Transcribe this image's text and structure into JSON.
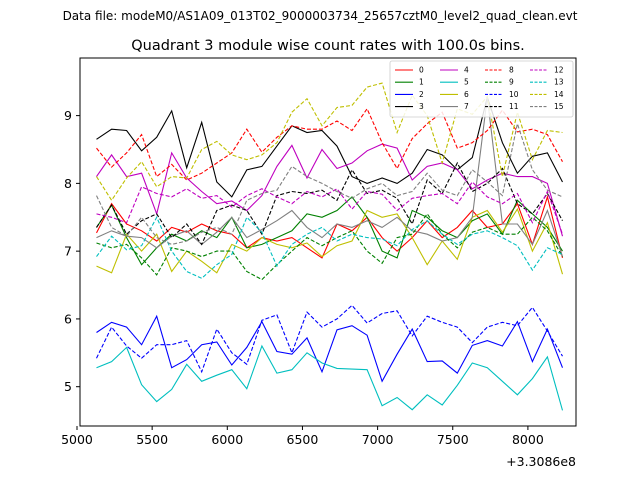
{
  "chart_data": {
    "type": "line",
    "suptitle": "Data file: modeM0/AS1A09_013T02_9000003734_25657cztM0_level2_quad_clean.evt",
    "title": "Quadrant 3 module wise count rates with 100.0s bins.",
    "xlabel": "",
    "ylabel": "",
    "x_offset_label": "+3.3086e8",
    "xlim": [
      5020,
      8320
    ],
    "ylim": [
      4.42,
      9.85
    ],
    "xticks": [
      5000,
      5500,
      6000,
      6500,
      7000,
      7500,
      8000
    ],
    "yticks": [
      5,
      6,
      7,
      8,
      9
    ],
    "x": [
      5130,
      5230,
      5330,
      5430,
      5530,
      5630,
      5730,
      5830,
      5930,
      6030,
      6130,
      6230,
      6330,
      6430,
      6530,
      6630,
      6730,
      6830,
      6930,
      7030,
      7130,
      7230,
      7330,
      7430,
      7530,
      7630,
      7730,
      7830,
      7930,
      8030,
      8130,
      8230
    ],
    "legend_position": "upper right",
    "series": [
      {
        "name": "0",
        "color": "#ff0000",
        "dash": "solid",
        "values": [
          7.27,
          7.7,
          7.4,
          7.3,
          7.15,
          7.35,
          7.28,
          7.4,
          7.3,
          7.25,
          7.05,
          7.2,
          7.15,
          7.2,
          7.05,
          6.9,
          7.4,
          7.3,
          7.5,
          7.2,
          7.0,
          7.2,
          7.45,
          7.2,
          7.35,
          7.6,
          7.35,
          7.4,
          7.7,
          7.1,
          7.8,
          6.9
        ]
      },
      {
        "name": "1",
        "color": "#008000",
        "dash": "solid",
        "values": [
          7.35,
          7.68,
          7.2,
          6.8,
          7.05,
          7.25,
          7.15,
          7.3,
          7.2,
          7.5,
          7.05,
          7.1,
          7.2,
          7.3,
          7.55,
          7.5,
          7.6,
          7.8,
          7.5,
          7.0,
          6.9,
          7.6,
          7.5,
          7.3,
          7.2,
          7.45,
          7.55,
          7.25,
          7.75,
          7.55,
          7.35,
          7.0
        ]
      },
      {
        "name": "2",
        "color": "#0000ff",
        "dash": "solid",
        "values": [
          5.8,
          5.95,
          5.88,
          5.62,
          6.04,
          5.28,
          5.4,
          5.62,
          5.66,
          5.32,
          5.58,
          5.96,
          5.52,
          5.48,
          5.72,
          5.22,
          5.84,
          5.9,
          5.76,
          5.08,
          5.48,
          5.85,
          5.37,
          5.38,
          5.2,
          5.61,
          5.68,
          5.6,
          5.96,
          5.37,
          5.85,
          5.28
        ]
      },
      {
        "name": "3",
        "color": "#000000",
        "dash": "solid",
        "values": [
          8.65,
          8.8,
          8.78,
          8.48,
          8.68,
          9.07,
          8.23,
          8.9,
          8.02,
          7.8,
          8.2,
          8.25,
          8.55,
          8.85,
          8.75,
          8.78,
          8.55,
          8.1,
          8.0,
          8.08,
          8.0,
          8.15,
          8.5,
          8.42,
          8.2,
          8.38,
          9.27,
          8.6,
          8.15,
          8.4,
          8.45,
          8.02
        ]
      },
      {
        "name": "4",
        "color": "#bf00bf",
        "dash": "solid",
        "values": [
          8.1,
          8.42,
          8.1,
          8.15,
          7.55,
          8.45,
          8.08,
          7.88,
          7.7,
          7.74,
          7.6,
          7.82,
          8.25,
          8.56,
          8.08,
          8.5,
          8.22,
          8.3,
          8.48,
          8.58,
          8.52,
          8.05,
          8.25,
          8.3,
          8.2,
          7.92,
          8.05,
          8.15,
          8.1,
          8.1,
          8.0,
          7.22
        ]
      },
      {
        "name": "5",
        "color": "#00bfbf",
        "dash": "solid",
        "values": [
          5.28,
          5.37,
          5.58,
          5.03,
          4.78,
          4.96,
          5.33,
          5.08,
          5.17,
          5.25,
          4.97,
          5.6,
          5.2,
          5.25,
          5.5,
          5.35,
          5.27,
          5.26,
          5.25,
          4.72,
          4.84,
          4.66,
          4.88,
          4.73,
          5.02,
          5.35,
          5.28,
          5.08,
          4.88,
          5.12,
          5.44,
          4.65
        ]
      },
      {
        "name": "6",
        "color": "#bfbf00",
        "dash": "solid",
        "values": [
          6.78,
          6.68,
          7.25,
          7.0,
          7.25,
          6.7,
          7.0,
          6.85,
          6.68,
          7.1,
          7.0,
          7.2,
          7.1,
          7.05,
          7.12,
          6.92,
          7.08,
          7.15,
          7.6,
          7.5,
          7.55,
          7.2,
          6.8,
          7.15,
          6.88,
          7.5,
          7.6,
          7.28,
          7.62,
          7.0,
          7.42,
          6.66
        ]
      },
      {
        "name": "7",
        "color": "#808080",
        "dash": "solid",
        "values": [
          7.2,
          7.3,
          7.22,
          7.2,
          7.05,
          7.22,
          7.3,
          7.1,
          7.28,
          7.5,
          7.2,
          7.32,
          7.45,
          7.6,
          7.35,
          7.2,
          7.4,
          7.35,
          7.45,
          7.35,
          7.5,
          7.3,
          7.25,
          7.15,
          7.2,
          7.5,
          9.27,
          7.4,
          7.4,
          7.1,
          7.6,
          6.92
        ]
      },
      {
        "name": "8",
        "color": "#ff0000",
        "dash": "dashed",
        "values": [
          8.52,
          8.24,
          8.45,
          8.72,
          8.1,
          8.28,
          8.05,
          8.15,
          8.3,
          8.45,
          8.8,
          8.46,
          8.68,
          8.85,
          8.8,
          8.8,
          8.92,
          8.78,
          9.1,
          8.6,
          8.22,
          8.66,
          8.88,
          9.05,
          8.52,
          8.6,
          8.78,
          9.08,
          8.76,
          8.8,
          8.72,
          8.32
        ]
      },
      {
        "name": "9",
        "color": "#008000",
        "dash": "dashed",
        "values": [
          7.12,
          7.05,
          7.1,
          6.9,
          6.65,
          7.05,
          7.0,
          6.92,
          7.0,
          7.0,
          6.7,
          6.58,
          6.8,
          7.0,
          7.2,
          7.08,
          7.2,
          7.3,
          7.0,
          6.82,
          7.2,
          7.25,
          7.55,
          7.25,
          7.05,
          7.28,
          7.35,
          7.25,
          7.25,
          7.5,
          7.3,
          6.92
        ]
      },
      {
        "name": "10",
        "color": "#0000ff",
        "dash": "dashed",
        "values": [
          5.42,
          5.88,
          5.6,
          5.42,
          5.62,
          5.62,
          5.68,
          5.22,
          5.85,
          5.5,
          5.33,
          5.98,
          6.06,
          5.5,
          6.1,
          5.88,
          6.0,
          6.2,
          5.94,
          6.08,
          6.12,
          5.75,
          6.04,
          5.95,
          5.88,
          5.65,
          5.88,
          5.95,
          5.9,
          6.17,
          5.82,
          5.45
        ]
      },
      {
        "name": "11",
        "color": "#000000",
        "dash": "dashed",
        "values": [
          7.35,
          7.68,
          7.25,
          7.45,
          7.55,
          7.2,
          7.4,
          7.1,
          7.6,
          7.68,
          7.6,
          7.25,
          7.82,
          7.88,
          7.85,
          7.9,
          7.75,
          8.2,
          7.85,
          7.9,
          7.78,
          7.4,
          8.05,
          7.85,
          8.3,
          7.88,
          8.0,
          8.22,
          7.7,
          7.55,
          7.85,
          7.45
        ]
      },
      {
        "name": "12",
        "color": "#bf00bf",
        "dash": "dashed",
        "values": [
          7.55,
          7.5,
          7.42,
          7.95,
          7.85,
          7.8,
          7.92,
          7.78,
          7.82,
          7.65,
          7.82,
          7.92,
          7.8,
          7.7,
          7.88,
          7.8,
          7.92,
          7.62,
          7.88,
          7.84,
          7.6,
          7.78,
          7.82,
          7.85,
          7.7,
          8.02,
          7.8,
          7.7,
          7.85,
          7.42,
          7.88,
          7.25
        ]
      },
      {
        "name": "13",
        "color": "#00bfbf",
        "dash": "dashed",
        "values": [
          6.92,
          7.22,
          7.02,
          7.08,
          7.5,
          7.0,
          6.7,
          6.6,
          6.8,
          6.95,
          7.5,
          7.28,
          6.78,
          7.1,
          7.25,
          7.35,
          7.15,
          7.25,
          7.2,
          7.18,
          7.08,
          7.32,
          7.45,
          7.25,
          7.1,
          7.25,
          7.3,
          7.2,
          7.08,
          6.72,
          7.05,
          6.95
        ]
      },
      {
        "name": "14",
        "color": "#bfbf00",
        "dash": "dashed",
        "values": [
          8.1,
          7.75,
          8.08,
          8.32,
          7.95,
          8.1,
          8.08,
          8.5,
          8.62,
          8.42,
          8.35,
          8.42,
          8.6,
          9.05,
          9.25,
          8.85,
          9.12,
          9.15,
          9.42,
          9.48,
          8.75,
          9.3,
          9.0,
          8.3,
          9.1,
          9.02,
          9.28,
          8.1,
          9.05,
          8.35,
          8.78,
          8.75
        ]
      },
      {
        "name": "15",
        "color": "#808080",
        "dash": "dashed",
        "values": [
          7.82,
          7.35,
          7.22,
          7.5,
          7.2,
          7.1,
          7.15,
          7.28,
          7.35,
          7.25,
          7.75,
          7.85,
          7.9,
          8.25,
          8.1,
          8.0,
          7.88,
          7.78,
          7.92,
          8.0,
          7.82,
          7.88,
          8.15,
          7.9,
          7.82,
          8.2,
          8.02,
          7.82,
          8.88,
          8.2,
          7.9,
          7.8
        ]
      }
    ]
  }
}
